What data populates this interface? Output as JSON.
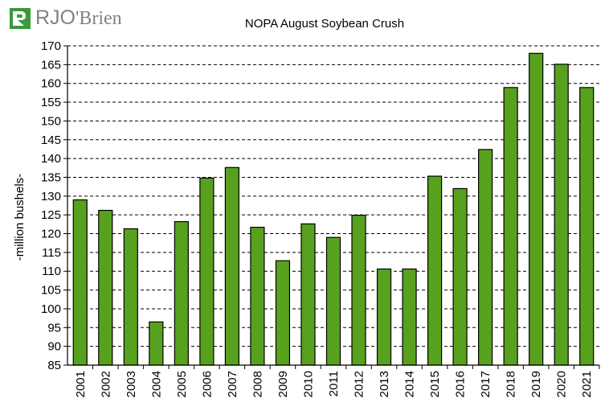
{
  "logo": {
    "part1": "RJO",
    "part2": "'Brien",
    "colors": {
      "green": "#3a9a3a",
      "gray": "#7c8388"
    }
  },
  "chart_data": {
    "type": "bar",
    "title": "NOPA August Soybean Crush",
    "ylabel": "-million bushels-",
    "xlabel": "",
    "categories": [
      "2001",
      "2002",
      "2003",
      "2004",
      "2005",
      "2006",
      "2007",
      "2008",
      "2009",
      "2010",
      "2011",
      "2012",
      "2013",
      "2014",
      "2015",
      "2016",
      "2017",
      "2018",
      "2019",
      "2020",
      "2021"
    ],
    "values": [
      129.0,
      126.2,
      121.3,
      96.5,
      123.2,
      134.8,
      137.6,
      121.7,
      112.8,
      122.6,
      119.0,
      124.9,
      110.6,
      110.6,
      135.3,
      132.0,
      142.4,
      158.9,
      168.0,
      165.1,
      158.9
    ],
    "ylim": [
      85,
      170
    ],
    "ytick_step": 5,
    "grid": true,
    "grid_style": "dashed",
    "bar_color": "#58a11e",
    "legend": "none"
  }
}
